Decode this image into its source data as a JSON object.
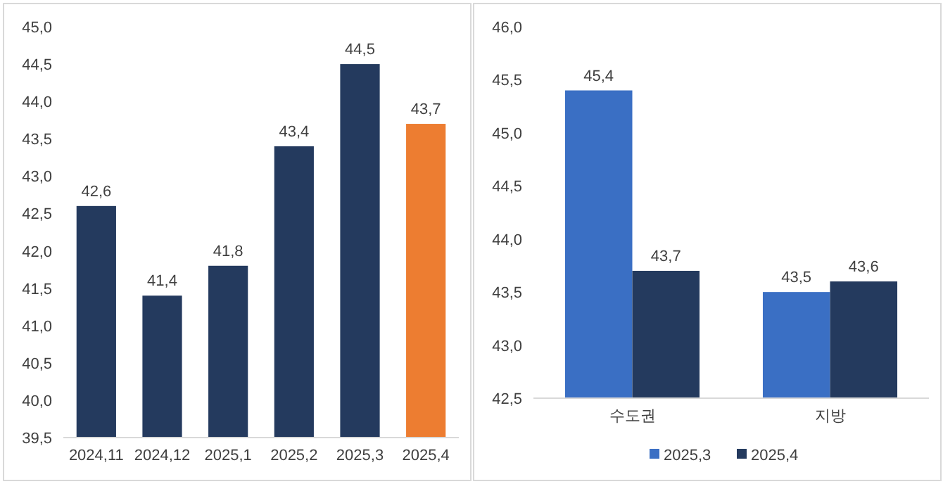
{
  "chart_data": [
    {
      "type": "bar",
      "categories": [
        "2024,11",
        "2024,12",
        "2025,1",
        "2025,2",
        "2025,3",
        "2025,4"
      ],
      "values": [
        42.6,
        41.4,
        41.8,
        43.4,
        44.5,
        43.7
      ],
      "colors": [
        "#243a5e",
        "#243a5e",
        "#243a5e",
        "#243a5e",
        "#243a5e",
        "#ed7d31"
      ],
      "value_labels": [
        "42,6",
        "41,4",
        "41,8",
        "43,4",
        "44,5",
        "43,7"
      ],
      "ylim": [
        39.5,
        45.0
      ],
      "yticks": [
        {
          "value": 39.5,
          "label": "39,5"
        },
        {
          "value": 40.0,
          "label": "40,0"
        },
        {
          "value": 40.5,
          "label": "40,5"
        },
        {
          "value": 41.0,
          "label": "41,0"
        },
        {
          "value": 41.5,
          "label": "41,5"
        },
        {
          "value": 42.0,
          "label": "42,0"
        },
        {
          "value": 42.5,
          "label": "42,5"
        },
        {
          "value": 43.0,
          "label": "43,0"
        },
        {
          "value": 43.5,
          "label": "43,5"
        },
        {
          "value": 44.0,
          "label": "44,0"
        },
        {
          "value": 44.5,
          "label": "44,5"
        },
        {
          "value": 45.0,
          "label": "45,0"
        }
      ]
    },
    {
      "type": "bar",
      "categories": [
        "수도권",
        "지방"
      ],
      "series": [
        {
          "name": "2025,3",
          "color": "#3a6fc4",
          "values": [
            45.4,
            43.5
          ],
          "value_labels": [
            "45,4",
            "43,5"
          ]
        },
        {
          "name": "2025,4",
          "color": "#243a5e",
          "values": [
            43.7,
            43.6
          ],
          "value_labels": [
            "43,7",
            "43,6"
          ]
        }
      ],
      "ylim": [
        42.5,
        46.0
      ],
      "yticks": [
        {
          "value": 42.5,
          "label": "42,5"
        },
        {
          "value": 43.0,
          "label": "43,0"
        },
        {
          "value": 43.5,
          "label": "43,5"
        },
        {
          "value": 44.0,
          "label": "44,0"
        },
        {
          "value": 44.5,
          "label": "44,5"
        },
        {
          "value": 45.0,
          "label": "45,0"
        },
        {
          "value": 45.5,
          "label": "45,5"
        },
        {
          "value": 46.0,
          "label": "46,0"
        }
      ],
      "legend": "bottom"
    }
  ]
}
